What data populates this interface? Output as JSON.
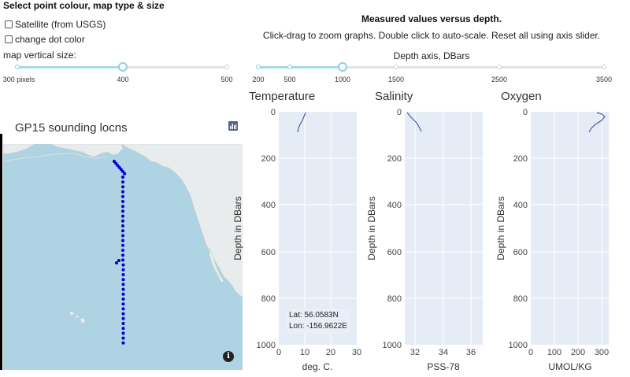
{
  "controls": {
    "title": "Select point colour, map type & size",
    "satellite_label": "Satellite (from USGS)",
    "change_dot_label": "change dot color",
    "map_size_label": "map vertical size:",
    "map_size_ticks": [
      "300 pixels",
      "400",
      "500"
    ],
    "map_size_value": "400"
  },
  "header": {
    "title": "Measured values versus depth.",
    "instructions": "Click-drag to zoom graphs. Double click to auto-scale. Reset all using axis slider.",
    "depth_slider_label": "Depth axis, DBars",
    "depth_ticks": [
      "200",
      "500",
      "1000",
      "1500",
      "2500",
      "3500"
    ],
    "depth_value": "1000"
  },
  "map": {
    "title": "GP15 sounding locns",
    "land_color": "#e9ecec",
    "ocean_color": "#aed3e3",
    "dot_color": "#0000cc",
    "info_glyph": "i",
    "tooltip_lat": "Lat: 56.0583N",
    "tooltip_lon": "Lon: -156.9622E"
  },
  "plots": {
    "ylabel": "Depth in DBars",
    "y_ticks": [
      "0",
      "200",
      "400",
      "600",
      "800",
      "1000"
    ],
    "temperature": {
      "title": "Temperature",
      "xlabel": "deg. C.",
      "x_ticks": [
        "0",
        "10",
        "20",
        "30"
      ]
    },
    "salinity": {
      "title": "Salinity",
      "xlabel": "PSS-78",
      "x_ticks": [
        "32",
        "34",
        "36"
      ]
    },
    "oxygen": {
      "title": "Oxygen",
      "xlabel": "UMOL/KG",
      "x_ticks": [
        "0",
        "100",
        "200",
        "300"
      ]
    }
  }
}
